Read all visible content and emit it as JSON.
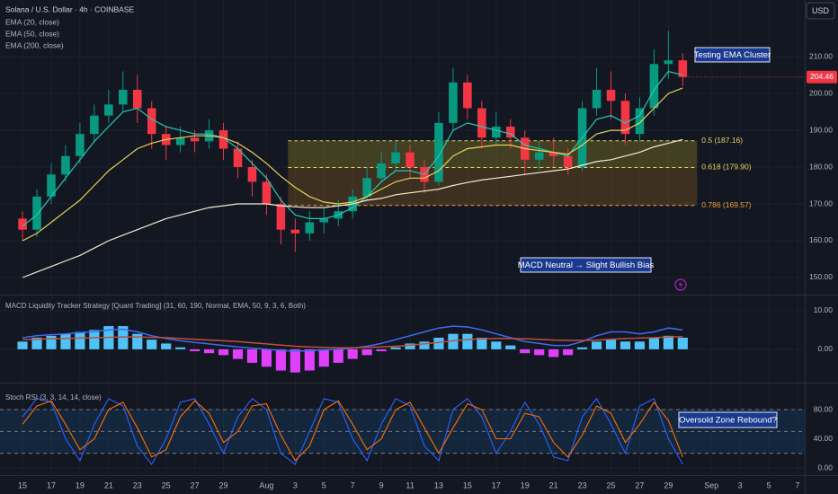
{
  "currency": "USD",
  "chart_data": [
    {
      "type": "candlestick",
      "title": "Solana / U.S. Dollar · 4h · COINBASE",
      "x": [
        0,
        1,
        2,
        3,
        4,
        5,
        6,
        7,
        8,
        9,
        10,
        11,
        12,
        13,
        14,
        15,
        16,
        17,
        18,
        19,
        20,
        21,
        22,
        23,
        24,
        25,
        26,
        27,
        28,
        29,
        30,
        31,
        32,
        33,
        34,
        35,
        36,
        37,
        38,
        39,
        40,
        41,
        42,
        43,
        44,
        45,
        46
      ],
      "open": [
        166,
        163,
        172,
        178,
        183,
        189,
        194,
        197,
        201,
        196,
        189,
        186,
        188,
        187,
        190,
        185,
        180,
        176,
        170,
        163,
        162,
        165,
        166,
        168,
        172,
        177,
        181,
        184,
        180,
        176,
        192,
        203,
        196,
        188,
        191,
        188,
        182,
        184,
        183,
        180,
        196,
        201,
        198,
        189,
        196,
        208,
        209
      ],
      "high": [
        168,
        174,
        181,
        186,
        192,
        197,
        201,
        206,
        205,
        198,
        191,
        191,
        190,
        193,
        192,
        187,
        182,
        178,
        172,
        166,
        168,
        169,
        171,
        174,
        180,
        184,
        187,
        186,
        182,
        195,
        207,
        205,
        198,
        195,
        193,
        190,
        187,
        188,
        185,
        198,
        207,
        206,
        200,
        199,
        212,
        217,
        211
      ],
      "low": [
        160,
        161,
        170,
        176,
        181,
        187,
        192,
        195,
        192,
        185,
        182,
        184,
        184,
        185,
        182,
        177,
        172,
        167,
        159,
        157,
        160,
        162,
        164,
        166,
        171,
        176,
        179,
        177,
        173,
        175,
        190,
        193,
        185,
        186,
        185,
        178,
        179,
        180,
        178,
        179,
        194,
        193,
        186,
        187,
        194,
        204,
        202
      ],
      "close": [
        163,
        172,
        178,
        183,
        189,
        194,
        197,
        201,
        196,
        189,
        186,
        188,
        187,
        190,
        185,
        180,
        176,
        170,
        163,
        162,
        165,
        166,
        168,
        172,
        177,
        181,
        184,
        180,
        176,
        192,
        203,
        196,
        188,
        191,
        188,
        182,
        184,
        183,
        180,
        196,
        201,
        198,
        189,
        196,
        208,
        209,
        204.46
      ],
      "up_color": "#089981",
      "down_color": "#f23645",
      "series": [
        {
          "name": "EMA (20, close)",
          "color": "#26c6b4",
          "values": [
            164,
            167,
            172,
            177,
            182,
            187,
            191,
            195,
            196,
            193,
            191,
            190,
            189,
            189,
            188,
            185,
            181,
            177,
            171,
            167,
            166,
            166,
            167,
            169,
            172,
            176,
            179,
            179,
            178,
            183,
            190,
            192,
            191,
            190,
            189,
            186,
            185,
            184,
            183,
            188,
            193,
            194,
            192,
            194,
            201,
            206,
            205
          ]
        },
        {
          "name": "EMA (50, close)",
          "color": "#e6d35a",
          "values": [
            160,
            162,
            165,
            168,
            171,
            175,
            179,
            182,
            185,
            186.5,
            187.5,
            188,
            188.5,
            188.5,
            188,
            186.5,
            184,
            181,
            177.5,
            174.5,
            172,
            170.5,
            170,
            170.5,
            172,
            174,
            176,
            177,
            177,
            179,
            183,
            185,
            185.5,
            186,
            186,
            185,
            184.5,
            184,
            183.5,
            186,
            189,
            190,
            190,
            192,
            196,
            200,
            201.5
          ]
        },
        {
          "name": "EMA (200, close)",
          "color": "#f3ecd2",
          "values": [
            150,
            151.5,
            153,
            154.5,
            156,
            158,
            160,
            161.5,
            163,
            164.5,
            166,
            167,
            168,
            169,
            169.5,
            170,
            170,
            170,
            169.5,
            169.2,
            169,
            169,
            169.5,
            170,
            171,
            171.5,
            172.5,
            173,
            173.5,
            174,
            175,
            175.8,
            176.5,
            177,
            177.5,
            178,
            178.5,
            179,
            179.5,
            180.5,
            181.5,
            182,
            183,
            184,
            185.5,
            186.5,
            187.5
          ]
        }
      ],
      "fib_levels": [
        {
          "value": 187.16,
          "label": "0.5 (187.16)"
        },
        {
          "value": 179.9,
          "label": "0.618 (179.90)"
        },
        {
          "value": 169.57,
          "label": "0.786 (169.57)"
        }
      ],
      "fib_x": [
        18.5,
        47
      ],
      "annotations": [
        "Testing EMA Cluster",
        "MACD Neutral → Slight Bullish Bias"
      ],
      "xlim": [
        -1.57,
        54.5
      ],
      "xticks": [
        {
          "value": 0,
          "label": "15"
        },
        {
          "value": 2,
          "label": "17"
        },
        {
          "value": 4,
          "label": "19"
        },
        {
          "value": 6,
          "label": "21"
        },
        {
          "value": 8,
          "label": "23"
        },
        {
          "value": 10,
          "label": "25"
        },
        {
          "value": 12,
          "label": "27"
        },
        {
          "value": 14,
          "label": "29"
        },
        {
          "value": 17,
          "label": "Aug"
        },
        {
          "value": 19,
          "label": "3"
        },
        {
          "value": 21,
          "label": "5"
        },
        {
          "value": 23,
          "label": "7"
        },
        {
          "value": 25,
          "label": "9"
        },
        {
          "value": 27,
          "label": "11"
        },
        {
          "value": 29,
          "label": "13"
        },
        {
          "value": 31,
          "label": "15"
        },
        {
          "value": 33,
          "label": "17"
        },
        {
          "value": 35,
          "label": "19"
        },
        {
          "value": 37,
          "label": "21"
        },
        {
          "value": 39,
          "label": "23"
        },
        {
          "value": 41,
          "label": "25"
        },
        {
          "value": 43,
          "label": "27"
        },
        {
          "value": 45,
          "label": "29"
        },
        {
          "value": 48,
          "label": "Sep"
        },
        {
          "value": 50,
          "label": "3"
        },
        {
          "value": 52,
          "label": "5"
        },
        {
          "value": 54,
          "label": "7"
        }
      ],
      "ylim": [
        145.6,
        225.4
      ],
      "yticks": [
        {
          "value": 150,
          "label": "150.00"
        },
        {
          "value": 160,
          "label": "160.00"
        },
        {
          "value": 170,
          "label": "170.00"
        },
        {
          "value": 180,
          "label": "180.00"
        },
        {
          "value": 190,
          "label": "190.00"
        },
        {
          "value": 200,
          "label": "200.00"
        },
        {
          "value": 210,
          "label": "210.00"
        }
      ],
      "grid": true
    },
    {
      "type": "macd",
      "title": "MACD Liquidity Tracker Strategy [Quant Trading] (31, 60, 190, Normal, EMA, 50, 9, 3, 6, Both)",
      "values": [
        2,
        3,
        3.5,
        4,
        4.5,
        5,
        6,
        6,
        4,
        2.5,
        1.5,
        0.5,
        -0.5,
        -1,
        -1.5,
        -2.5,
        -3.5,
        -4.5,
        -5.5,
        -6,
        -5.5,
        -4.5,
        -3.5,
        -2.5,
        -1.5,
        -0.5,
        0.5,
        1.5,
        2,
        3,
        4,
        4,
        3,
        2,
        1,
        -1,
        -1.5,
        -2,
        -1.5,
        0.5,
        2,
        2.5,
        2,
        2,
        3,
        3.5,
        3
      ],
      "positive_color": "#4fc3f7",
      "negative_color": "#e040fb",
      "lines": [
        {
          "color": "#3d6bf0",
          "values": [
            3,
            3.5,
            3.8,
            4,
            4.3,
            4.6,
            5,
            5.2,
            4.5,
            3.5,
            2.8,
            2.2,
            1.8,
            1.4,
            1,
            0.6,
            0.3,
            0,
            -0.3,
            -0.5,
            -0.4,
            -0.2,
            0,
            0.3,
            0.8,
            1.5,
            2.5,
            3.5,
            4.5,
            5.5,
            6,
            5.8,
            5,
            4,
            3,
            2,
            1.5,
            1,
            1,
            2,
            3.5,
            4.5,
            4.5,
            4,
            4.5,
            5.5,
            5
          ]
        },
        {
          "color": "#c0503a",
          "values": [
            2.5,
            2.6,
            2.7,
            2.8,
            2.9,
            3,
            3.1,
            3.2,
            3.2,
            3.1,
            3,
            2.8,
            2.6,
            2.4,
            2.2,
            2,
            1.7,
            1.4,
            1.1,
            0.8,
            0.6,
            0.5,
            0.4,
            0.4,
            0.5,
            0.6,
            0.8,
            1.1,
            1.4,
            1.8,
            2.2,
            2.5,
            2.7,
            2.8,
            2.8,
            2.7,
            2.6,
            2.4,
            2.3,
            2.3,
            2.4,
            2.6,
            2.8,
            2.9,
            3,
            3.2,
            3.3
          ]
        }
      ],
      "ylim": [
        -8.4,
        13.7
      ],
      "yticks": [
        {
          "value": 0,
          "label": "0.00"
        },
        {
          "value": 10,
          "label": "10.00"
        }
      ],
      "grid": true
    },
    {
      "type": "line",
      "title": "Stoch RSI (3, 3, 14, 14, close)",
      "series": [
        {
          "color": "#2962ff",
          "values": [
            70,
            95,
            90,
            40,
            10,
            60,
            95,
            85,
            30,
            5,
            40,
            90,
            95,
            60,
            20,
            70,
            95,
            80,
            20,
            5,
            50,
            95,
            90,
            40,
            10,
            60,
            95,
            85,
            30,
            10,
            80,
            95,
            70,
            20,
            50,
            90,
            60,
            15,
            10,
            70,
            95,
            60,
            20,
            85,
            95,
            40,
            5
          ]
        },
        {
          "color": "#ff6d00",
          "values": [
            60,
            85,
            92,
            60,
            25,
            40,
            80,
            90,
            55,
            15,
            25,
            70,
            92,
            75,
            35,
            50,
            85,
            88,
            45,
            10,
            30,
            80,
            92,
            60,
            25,
            40,
            80,
            90,
            55,
            20,
            55,
            88,
            80,
            40,
            40,
            75,
            70,
            35,
            15,
            45,
            85,
            75,
            35,
            60,
            90,
            65,
            15
          ]
        }
      ],
      "upper_band": 80,
      "middle_band": 50,
      "lower_band": 20,
      "annotations": [
        "Oversold Zone Rebound?"
      ],
      "ylim": [
        -8.6,
        114.5
      ],
      "yticks": [
        {
          "value": 0,
          "label": "0.00"
        },
        {
          "value": 40,
          "label": "40.00"
        },
        {
          "value": 80,
          "label": "80.00"
        }
      ],
      "grid": true
    }
  ]
}
